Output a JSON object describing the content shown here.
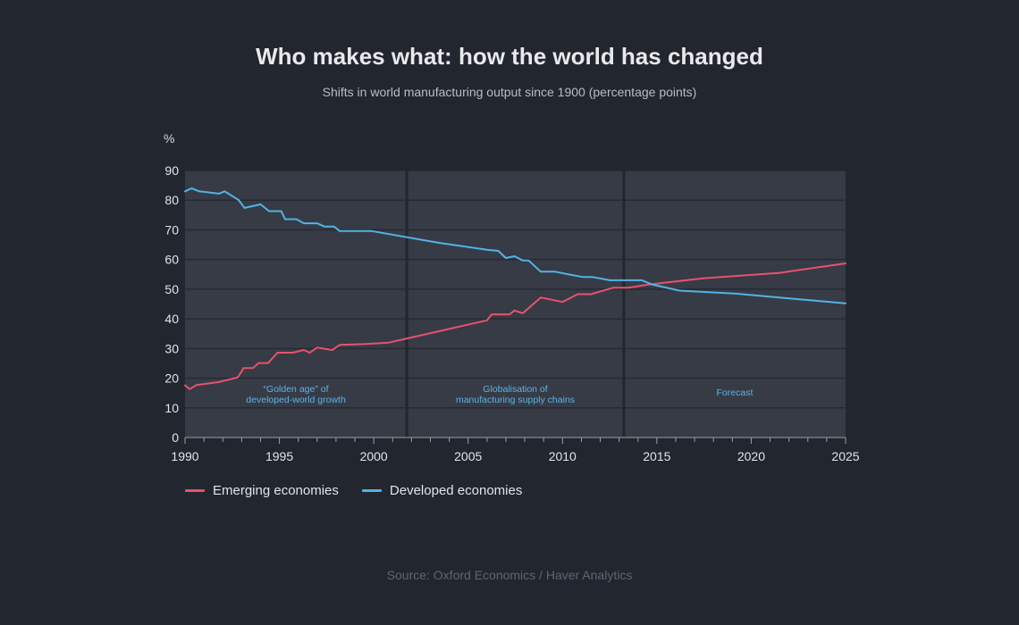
{
  "chart_data": {
    "type": "line",
    "title": "Who makes what: how the world has changed",
    "subtitle": "Shifts in world manufacturing output since 1900 (percentage points)",
    "ylabel": "%",
    "xlim": [
      1990,
      2025
    ],
    "ylim": [
      0,
      90
    ],
    "x_ticks": [
      "1990",
      "1995",
      "2000",
      "2005",
      "2010",
      "2015",
      "2020",
      "2025"
    ],
    "y_ticks": [
      "0",
      "10",
      "20",
      "30",
      "40",
      "50",
      "60",
      "70",
      "80",
      "90"
    ],
    "grid": true,
    "legend": "bottom-left",
    "periods": [
      {
        "start": 1990,
        "end": 2001.75,
        "label": [
          "“Golden age” of",
          "developed-world growth"
        ]
      },
      {
        "start": 2001.75,
        "end": 2013.25,
        "label": [
          "Globalisation of",
          "manufacturing supply chains"
        ]
      },
      {
        "start": 2013.25,
        "end": 2025,
        "label": [
          "Forecast"
        ]
      }
    ],
    "series": [
      {
        "name": "Emerging economies",
        "color": "#e5536e",
        "points": [
          [
            1990,
            17.6
          ],
          [
            1990.25,
            16.3
          ],
          [
            1990.6,
            17.7
          ],
          [
            1991.8,
            18.7
          ],
          [
            1992.8,
            20.3
          ],
          [
            1993.1,
            23.4
          ],
          [
            1993.6,
            23.4
          ],
          [
            1993.9,
            25.1
          ],
          [
            1994.4,
            25.1
          ],
          [
            1994.9,
            28.6
          ],
          [
            1995.7,
            28.6
          ],
          [
            1996.3,
            29.5
          ],
          [
            1996.6,
            28.6
          ],
          [
            1997.0,
            30.3
          ],
          [
            1997.8,
            29.5
          ],
          [
            1998.2,
            31.2
          ],
          [
            1999.5,
            31.5
          ],
          [
            2000.8,
            32.0
          ],
          [
            2006.0,
            39.5
          ],
          [
            2006.25,
            41.5
          ],
          [
            2007.2,
            41.5
          ],
          [
            2007.45,
            42.8
          ],
          [
            2007.9,
            41.9
          ],
          [
            2008.85,
            47.2
          ],
          [
            2010.0,
            45.7
          ],
          [
            2010.8,
            48.3
          ],
          [
            2011.5,
            48.3
          ],
          [
            2012.7,
            50.5
          ],
          [
            2013.5,
            50.5
          ],
          [
            2014.5,
            51.5
          ],
          [
            2017.5,
            53.7
          ],
          [
            2021.5,
            55.5
          ],
          [
            2025,
            58.7
          ]
        ]
      },
      {
        "name": "Developed economies",
        "color": "#52b3e6",
        "points": [
          [
            1990,
            83.0
          ],
          [
            1990.35,
            84.0
          ],
          [
            1990.75,
            83.0
          ],
          [
            1991.8,
            82.2
          ],
          [
            1992.1,
            83.0
          ],
          [
            1992.85,
            80.0
          ],
          [
            1993.15,
            77.4
          ],
          [
            1994.0,
            78.6
          ],
          [
            1994.45,
            76.3
          ],
          [
            1995.1,
            76.3
          ],
          [
            1995.3,
            73.6
          ],
          [
            1995.9,
            73.6
          ],
          [
            1996.3,
            72.2
          ],
          [
            1997.0,
            72.2
          ],
          [
            1997.4,
            71.1
          ],
          [
            1997.9,
            71.1
          ],
          [
            1998.2,
            69.6
          ],
          [
            1999.9,
            69.6
          ],
          [
            2003.5,
            65.6
          ],
          [
            2006.0,
            63.3
          ],
          [
            2006.6,
            62.9
          ],
          [
            2007.0,
            60.5
          ],
          [
            2007.45,
            61.1
          ],
          [
            2007.9,
            59.7
          ],
          [
            2008.2,
            59.7
          ],
          [
            2008.85,
            55.9
          ],
          [
            2009.6,
            55.9
          ],
          [
            2010.4,
            54.9
          ],
          [
            2011.1,
            54.1
          ],
          [
            2011.6,
            54.1
          ],
          [
            2012.5,
            53.0
          ],
          [
            2014.2,
            53.0
          ],
          [
            2014.8,
            51.5
          ],
          [
            2016.2,
            49.5
          ],
          [
            2019.2,
            48.5
          ],
          [
            2025,
            45.2
          ]
        ]
      }
    ]
  },
  "source": "Source: Oxford Economics / Haver Analytics"
}
